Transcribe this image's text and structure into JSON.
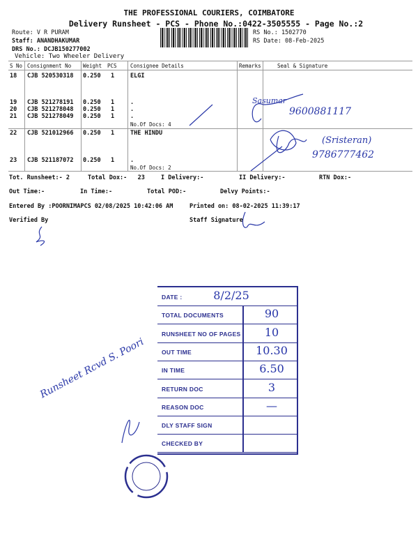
{
  "header": {
    "company": "THE PROFESSIONAL COURIERS, COIMBATORE",
    "subtitle": "Delivery Runsheet - PCS - Phone No.:0422-3505555 - Page No.:2",
    "route": "Route: V R PURAM",
    "staff": "Staff: ANANDHAKUMAR",
    "drs": "DRS No.: DCJB150277002",
    "vehicle": "Vehicle: Two Wheeler Delivery",
    "rs_no": "RS No.: 1502770",
    "rs_date": "RS Date: 08-Feb-2025"
  },
  "table": {
    "columns": [
      "S No",
      "Consignment No",
      "Weight",
      "PCS",
      "Consignee Details",
      "Remarks",
      "Seal & Signature"
    ],
    "rows": [
      {
        "sno": "18",
        "cn": "CJB 520530318",
        "wt": "0.250",
        "pcs": "1",
        "details": "ELGI"
      },
      {
        "sno": "19",
        "cn": "CJB 521278191",
        "wt": "0.250",
        "pcs": "1",
        "details": "."
      },
      {
        "sno": "20",
        "cn": "CJB 521278048",
        "wt": "0.250",
        "pcs": "1",
        "details": "."
      },
      {
        "sno": "21",
        "cn": "CJB 521278049",
        "wt": "0.250",
        "pcs": "1",
        "details": "."
      },
      {
        "sno": "22",
        "cn": "CJB 521012966",
        "wt": "0.250",
        "pcs": "1",
        "details": "THE HINDU"
      },
      {
        "sno": "23",
        "cn": "CJB 521187072",
        "wt": "0.250",
        "pcs": "1",
        "details": "."
      }
    ],
    "group_docs": [
      "No.Of Docs: 4",
      "No.Of Docs: 2"
    ],
    "handwritten": [
      "9600881117",
      "(Sristeran)",
      "9786777462"
    ]
  },
  "summary": {
    "tot_runsheet": "Tot. Runsheet:- 2",
    "total_dox": "Total Dox:-   23",
    "i_delivery": "I Delivery:-",
    "ii_delivery": "II Delivery:-",
    "rtn_dox": "RTN Dox:-",
    "out_time": "Out Time:-",
    "in_time": "In Time:-",
    "total_pod": "Total POD:-",
    "delvy_points": "Delvy Points:-",
    "entered_by": "Entered By :POORNIMAPCS 02/08/2025 10:42:06 AM",
    "printed_on": "Printed on: 08-02-2025 11:39:17",
    "verified_by": "Verified By",
    "staff_signature": "Staff Signature"
  },
  "stamp": {
    "rows": [
      {
        "label": "DATE :",
        "value": "8/2/25"
      },
      {
        "label": "TOTAL DOCUMENTS",
        "value": "90"
      },
      {
        "label": "RUNSHEET NO OF PAGES",
        "value": "10"
      },
      {
        "label": "OUT TIME",
        "value": "10.30"
      },
      {
        "label": "IN TIME",
        "value": "6.50"
      },
      {
        "label": "RETURN DOC",
        "value": "3"
      },
      {
        "label": "REASON DOC",
        "value": "—"
      },
      {
        "label": "DLY STAFF SIGN",
        "value": ""
      },
      {
        "label": "CHECKED BY",
        "value": ""
      }
    ]
  },
  "note": "Runsheet Rcvd S. Poori",
  "colors": {
    "ink": "#2a38a8",
    "stamp": "#2b2f8f"
  }
}
